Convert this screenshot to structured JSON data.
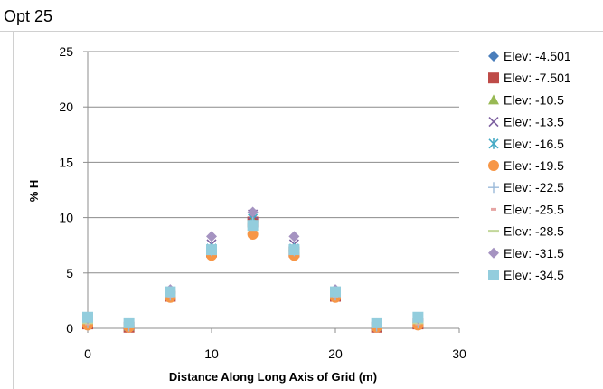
{
  "chart_data": {
    "type": "scatter",
    "title": "Opt 25",
    "xlabel": "Distance Along Long Axis of Grid (m)",
    "ylabel": "% H",
    "xlim": [
      0,
      30
    ],
    "ylim": [
      0,
      25
    ],
    "xticks": [
      0,
      10,
      20,
      30
    ],
    "yticks": [
      0,
      5,
      10,
      15,
      20,
      25
    ],
    "grid": "horizontal",
    "legend_position": "right",
    "x": [
      0,
      3.33,
      6.67,
      10,
      13.33,
      16.67,
      20,
      23.33,
      26.67
    ],
    "series": [
      {
        "name": "Elev: -4.501",
        "marker": "diamond",
        "color": "#4a7ebb",
        "values": [
          0.5,
          0.2,
          3.0,
          7.0,
          9.8,
          7.0,
          3.0,
          0.2,
          0.5
        ]
      },
      {
        "name": "Elev: -7.501",
        "marker": "square",
        "color": "#be4b48",
        "values": [
          0.4,
          0.1,
          2.9,
          6.9,
          9.6,
          6.9,
          2.9,
          0.1,
          0.4
        ]
      },
      {
        "name": "Elev: -10.5",
        "marker": "triangle",
        "color": "#98b954",
        "values": [
          0.5,
          0.2,
          3.0,
          7.0,
          9.7,
          7.0,
          3.0,
          0.2,
          0.5
        ]
      },
      {
        "name": "Elev: -13.5",
        "marker": "x",
        "color": "#7d60a0",
        "values": [
          0.6,
          0.3,
          3.2,
          7.6,
          10.3,
          7.6,
          3.2,
          0.3,
          0.6
        ]
      },
      {
        "name": "Elev: -16.5",
        "marker": "asterisk",
        "color": "#46aac5",
        "values": [
          0.5,
          0.2,
          3.0,
          7.2,
          9.9,
          7.2,
          3.0,
          0.2,
          0.5
        ]
      },
      {
        "name": "Elev: -19.5",
        "marker": "circle",
        "color": "#f79646",
        "values": [
          0.3,
          0.1,
          2.8,
          6.6,
          8.5,
          6.6,
          2.8,
          0.1,
          0.3
        ]
      },
      {
        "name": "Elev: -22.5",
        "marker": "plus",
        "color": "#9bbad9",
        "values": [
          0.5,
          0.2,
          3.0,
          7.0,
          9.7,
          7.0,
          3.0,
          0.2,
          0.5
        ]
      },
      {
        "name": "Elev: -25.5",
        "marker": "dash",
        "color": "#e6a5a4",
        "values": [
          0.4,
          0.2,
          2.9,
          6.9,
          9.5,
          6.9,
          2.9,
          0.2,
          0.4
        ]
      },
      {
        "name": "Elev: -28.5",
        "marker": "longdash",
        "color": "#c3d79b",
        "values": [
          0.5,
          0.2,
          3.0,
          7.0,
          9.6,
          7.0,
          3.0,
          0.2,
          0.5
        ]
      },
      {
        "name": "Elev: -31.5",
        "marker": "diamond",
        "color": "#a593c1",
        "values": [
          0.9,
          0.5,
          3.5,
          8.3,
          10.5,
          8.3,
          3.5,
          0.5,
          0.9
        ]
      },
      {
        "name": "Elev: -34.5",
        "marker": "square",
        "color": "#93cddd",
        "values": [
          1.0,
          0.5,
          3.3,
          7.1,
          9.3,
          7.1,
          3.3,
          0.5,
          1.0
        ]
      }
    ]
  }
}
